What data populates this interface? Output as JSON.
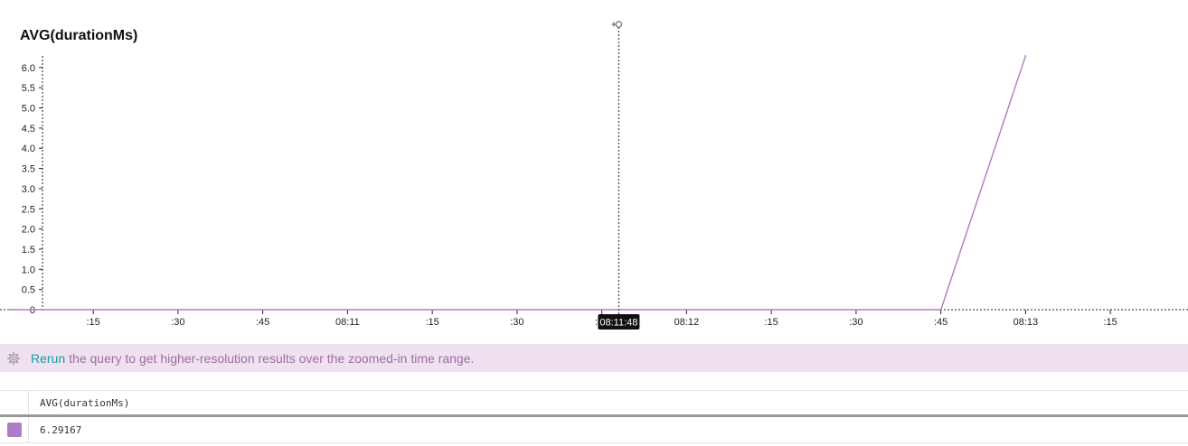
{
  "chart_data": {
    "type": "line",
    "title": "AVG(durationMs)",
    "xlabel": "",
    "ylabel": "",
    "x_tick_labels": [
      ":15",
      ":30",
      ":45",
      "08:11",
      ":15",
      ":30",
      ":45",
      "08:12",
      ":15",
      ":30",
      ":45",
      "08:13",
      ":15"
    ],
    "x_ticks_seconds": [
      15,
      30,
      45,
      60,
      75,
      90,
      105,
      120,
      135,
      150,
      165,
      180,
      195
    ],
    "x_tick_reference": "08:10:00",
    "xlim_seconds": [
      0,
      210
    ],
    "y_tick_labels": [
      "0",
      "0.5",
      "1.0",
      "1.5",
      "2.0",
      "2.5",
      "3.0",
      "3.5",
      "4.0",
      "4.5",
      "5.0",
      "5.5",
      "6.0"
    ],
    "y_ticks": [
      0,
      0.5,
      1.0,
      1.5,
      2.0,
      2.5,
      3.0,
      3.5,
      4.0,
      4.5,
      5.0,
      5.5,
      6.0
    ],
    "ylim": [
      0,
      6.2
    ],
    "series": [
      {
        "color": "#b07cc6",
        "x_seconds": [
          0,
          165,
          180
        ],
        "y": [
          0,
          0,
          6.29167
        ]
      }
    ],
    "cursor": {
      "label": "08:11:48",
      "x_seconds": 108
    },
    "grid": false
  },
  "banner": {
    "link": "Rerun",
    "message": "the query to get higher-resolution results over the zoomed-in time range."
  },
  "results": {
    "header": "AVG(durationMs)",
    "value": "6.29167",
    "swatch_color": "#b07cc6"
  }
}
